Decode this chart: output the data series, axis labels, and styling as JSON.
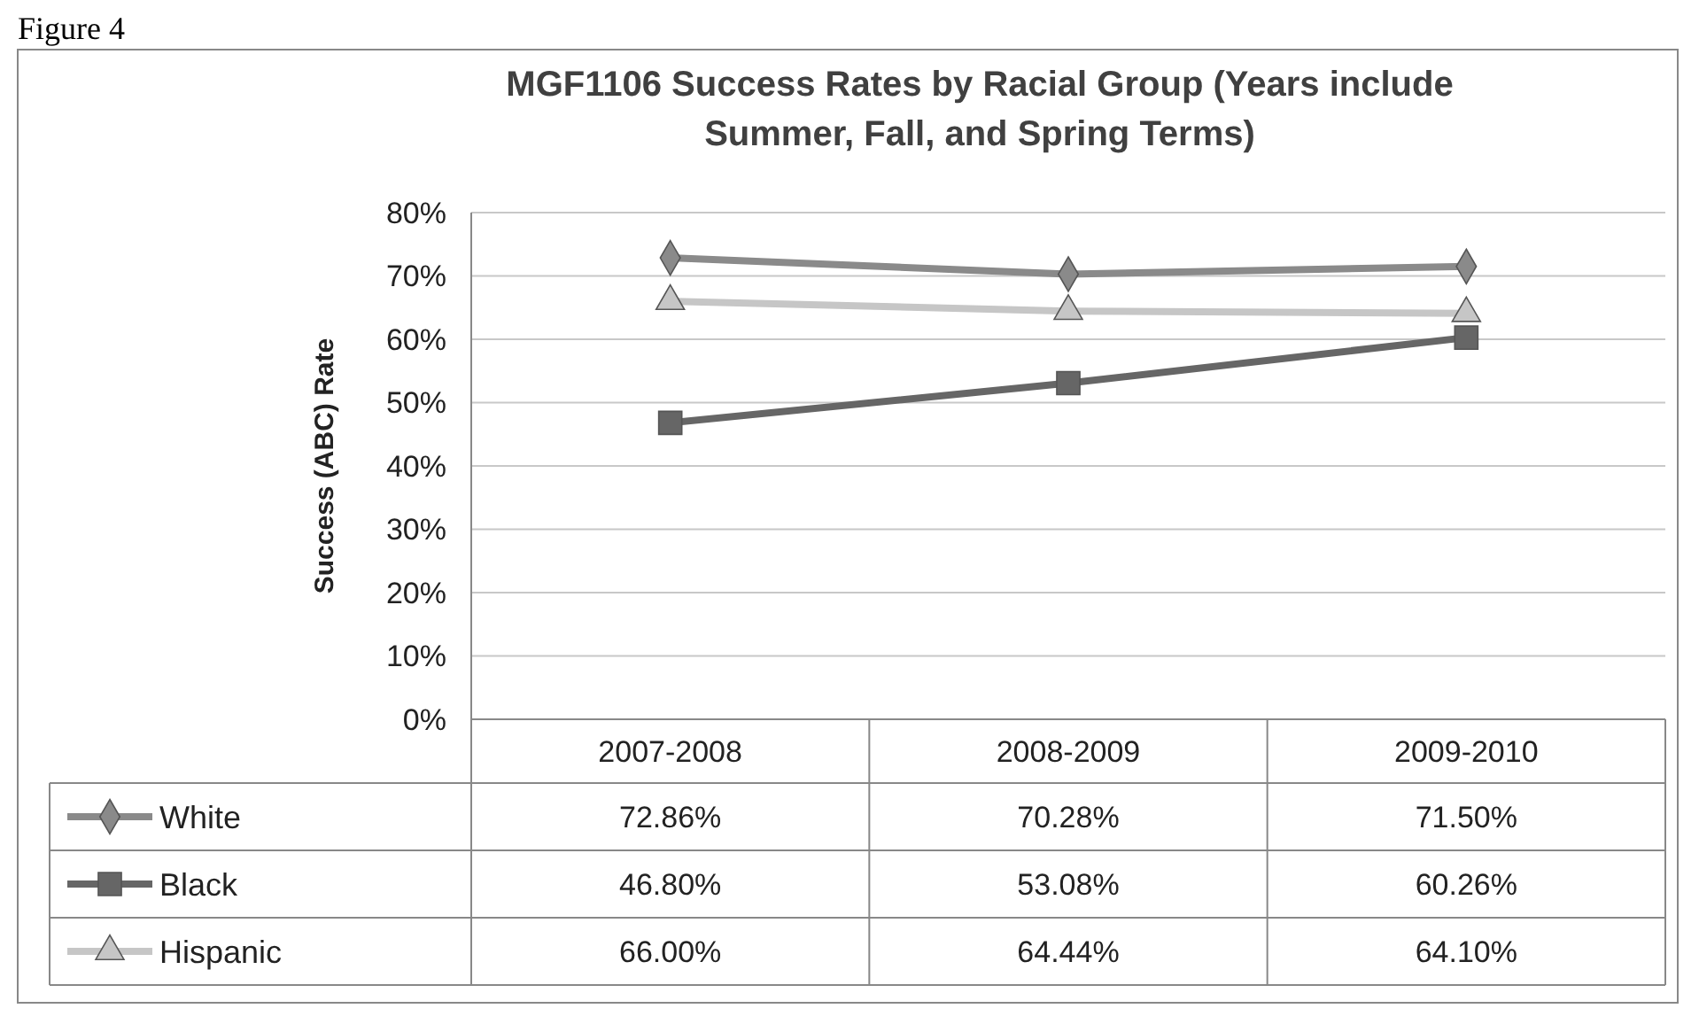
{
  "chart_data": {
    "type": "line",
    "title": "MGF1106 Success Rates by Racial Group (Years include Summer, Fall, and Spring Terms)",
    "ylabel": "Success (ABC) Rate",
    "annotations": [
      "Figure 4"
    ],
    "categories": [
      "2007-2008",
      "2008-2009",
      "2009-2010"
    ],
    "series": [
      {
        "name": "White",
        "color": "#8a8a8a",
        "marker": "diamond",
        "values": [
          72.86,
          70.28,
          71.5
        ],
        "value_labels": [
          "72.86%",
          "70.28%",
          "71.50%"
        ]
      },
      {
        "name": "Black",
        "color": "#666666",
        "marker": "square",
        "values": [
          46.8,
          53.08,
          60.26
        ],
        "value_labels": [
          "46.80%",
          "53.08%",
          "60.26%"
        ]
      },
      {
        "name": "Hispanic",
        "color": "#c6c6c6",
        "marker": "triangle",
        "values": [
          66.0,
          64.44,
          64.1
        ],
        "value_labels": [
          "66.00%",
          "64.44%",
          "64.10%"
        ]
      }
    ],
    "ylim": [
      0,
      80
    ],
    "yticks": [
      {
        "value": 0,
        "label": "0%"
      },
      {
        "value": 10,
        "label": "10%"
      },
      {
        "value": 20,
        "label": "20%"
      },
      {
        "value": 30,
        "label": "30%"
      },
      {
        "value": 40,
        "label": "40%"
      },
      {
        "value": 50,
        "label": "50%"
      },
      {
        "value": 60,
        "label": "60%"
      },
      {
        "value": 70,
        "label": "70%"
      },
      {
        "value": 80,
        "label": "80%"
      }
    ],
    "grid": "y",
    "legend": "bottom",
    "line_style": "solid"
  }
}
